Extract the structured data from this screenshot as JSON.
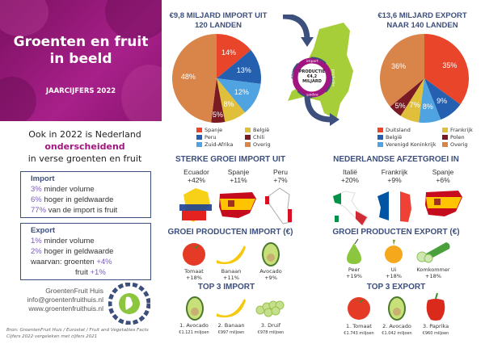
{
  "banner": {
    "title_line1": "Groenten en fruit",
    "title_line2": "in beeld",
    "subtitle": "JAARCIJFERS 2022"
  },
  "intro": {
    "line1": "Ook in 2022 is Nederland",
    "line2": "onderscheidend",
    "line3": "in verse groenten en fruit"
  },
  "import_box": {
    "title": "Import",
    "rows": [
      {
        "pct": "3%",
        "text": " minder volume"
      },
      {
        "pct": "6%",
        "text": " hoger in geldwaarde"
      },
      {
        "pct": "77%",
        "text": " van de import is fruit"
      }
    ]
  },
  "export_box": {
    "title": "Export",
    "rows": [
      {
        "pct": "1%",
        "text": " minder volume"
      },
      {
        "pct": "2%",
        "text": " hoger in geldwaarde"
      }
    ],
    "waarvan": "waarvan: groenten ",
    "groenten_pct": "+4%",
    "fruit": "fruit ",
    "fruit_pct": "+1%"
  },
  "contact": {
    "name": "GroentenFruit Huis",
    "email": "info@groentenfruithuis.nl",
    "web": "www.groentenfruithuis.nl",
    "logo_text": "Groenten Fruit Huis"
  },
  "source": {
    "line1": "Bron: GroentenFruit Huis / Eurostat / Fruit and Vegetables Facts",
    "line2": "Cijfers 2022 vergeleken met cijfers 2021"
  },
  "center": {
    "label1": "PRODUCTIE",
    "label2": "€4,2",
    "label3": "MILJARD",
    "ring": [
      "import",
      "productie",
      "export",
      "doorvoer"
    ]
  },
  "chart_data": [
    {
      "type": "pie",
      "title": "€9,8 MILJARD IMPORT UIT 120 LANDEN",
      "title1": "€9,8 MILJARD IMPORT UIT",
      "title2": "120 LANDEN",
      "slices": [
        {
          "label": "Spanje",
          "value": 14,
          "text": "14%",
          "color": "#e8452a"
        },
        {
          "label": "Peru",
          "value": 13,
          "text": "13%",
          "color": "#2560b0"
        },
        {
          "label": "Zuid-Afrika",
          "value": 12,
          "text": "12%",
          "color": "#4fa3e0"
        },
        {
          "label": "België",
          "value": 8,
          "text": "8%",
          "color": "#e0c03a"
        },
        {
          "label": "Chili",
          "value": 5,
          "text": "5%",
          "color": "#7a1a22"
        },
        {
          "label": "Overig",
          "value": 48,
          "text": "48%",
          "color": "#d9854a"
        }
      ]
    },
    {
      "type": "pie",
      "title": "€13,6 MILJARD EXPORT NAAR 140 LANDEN",
      "title1": "€13,6 MILJARD EXPORT",
      "title2": "NAAR 140 LANDEN",
      "slices": [
        {
          "label": "Duitsland",
          "value": 35,
          "text": "35%",
          "color": "#e8452a"
        },
        {
          "label": "België",
          "value": 9,
          "text": "9%",
          "color": "#2560b0"
        },
        {
          "label": "Verenigd Koninkrijk",
          "value": 8,
          "text": "8%",
          "color": "#4fa3e0"
        },
        {
          "label": "Frankrijk",
          "value": 7,
          "text": "7%",
          "color": "#e0c03a"
        },
        {
          "label": "Polen",
          "value": 5,
          "text": "5%",
          "color": "#7a1a22"
        },
        {
          "label": "Overig",
          "value": 36,
          "text": "36%",
          "color": "#d9854a"
        }
      ]
    }
  ],
  "growth_import": {
    "title": "STERKE GROEI IMPORT UIT",
    "items": [
      {
        "country": "Ecuador",
        "pct": "+42%"
      },
      {
        "country": "Spanje",
        "pct": "+11%"
      },
      {
        "country": "Peru",
        "pct": "+7%"
      }
    ]
  },
  "growth_export": {
    "title": "NEDERLANDSE AFZETGROEI IN",
    "items": [
      {
        "country": "Italië",
        "pct": "+20%"
      },
      {
        "country": "Frankrijk",
        "pct": "+9%"
      },
      {
        "country": "Spanje",
        "pct": "+6%"
      }
    ]
  },
  "prod_import": {
    "title": "GROEI PRODUCTEN IMPORT (€)",
    "items": [
      {
        "name": "Tomaat",
        "pct": "+18%"
      },
      {
        "name": "Banaan",
        "pct": "+11%"
      },
      {
        "name": "Avocado",
        "pct": "+9%"
      }
    ]
  },
  "prod_export": {
    "title": "GROEI PRODUCTEN EXPORT (€)",
    "items": [
      {
        "name": "Peer",
        "pct": "+19%"
      },
      {
        "name": "Ui",
        "pct": "+18%"
      },
      {
        "name": "Komkommer",
        "pct": "+18%"
      }
    ]
  },
  "top_import": {
    "title": "TOP 3 IMPORT",
    "items": [
      {
        "name": "1. Avocado",
        "value": "€1.121 miljoen"
      },
      {
        "name": "2. Banaan",
        "value": "€997 miljoen"
      },
      {
        "name": "3. Druif",
        "value": "€978 miljoen"
      }
    ]
  },
  "top_export": {
    "title": "TOP 3 EXPORT",
    "items": [
      {
        "name": "1. Tomaat",
        "value": "€1.743 miljoen"
      },
      {
        "name": "2. Avocado",
        "value": "€1.042 miljoen"
      },
      {
        "name": "3. Paprika",
        "value": "€960 miljoen"
      }
    ]
  }
}
